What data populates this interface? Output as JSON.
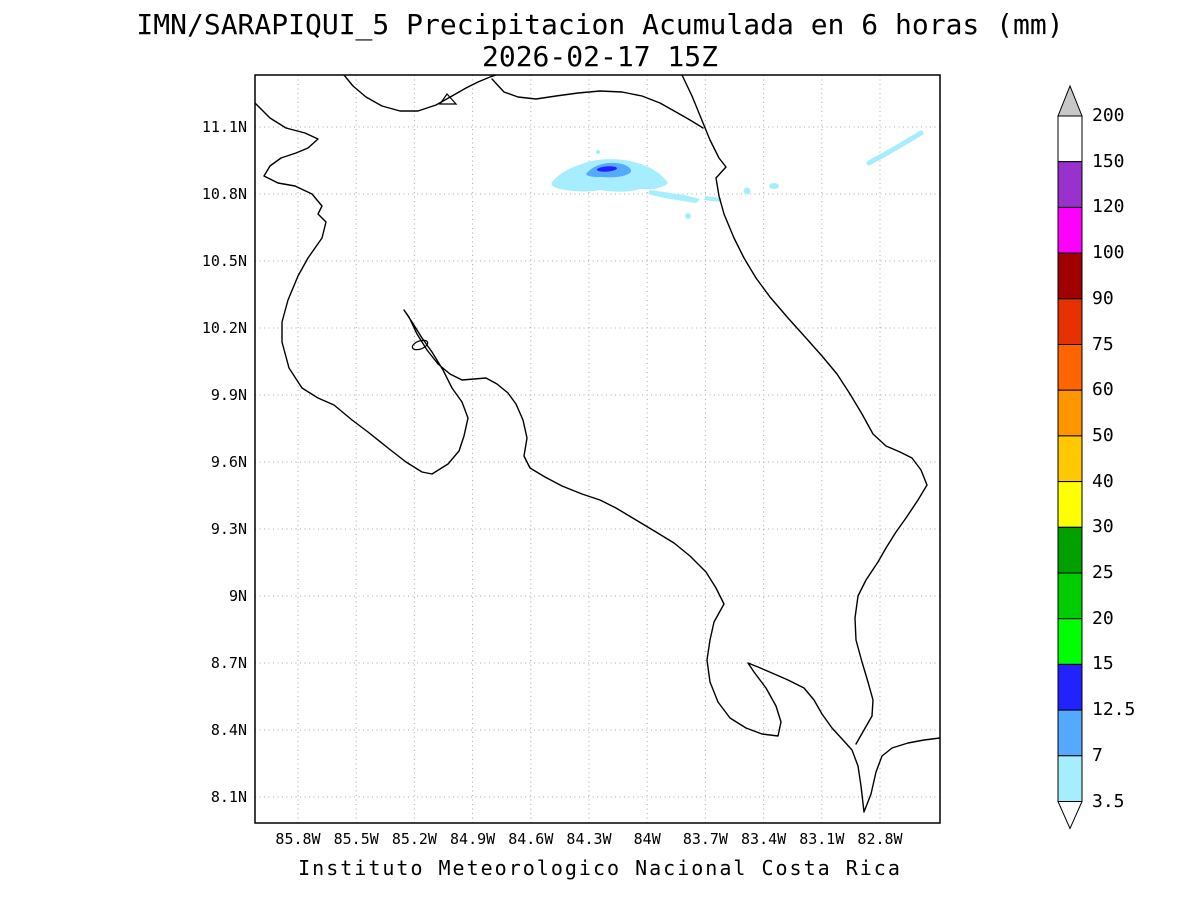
{
  "title": {
    "line1": "IMN/SARAPIQUI_5 Precipitacion Acumulada en 6 horas (mm)",
    "line2": "2026-02-17 15Z"
  },
  "footer": "Instituto Meteorologico Nacional Costa Rica",
  "axes": {
    "lat_ticks": [
      "11.1N",
      "10.8N",
      "10.5N",
      "10.2N",
      "9.9N",
      "9.6N",
      "9.3N",
      "9N",
      "8.7N",
      "8.4N",
      "8.1N"
    ],
    "lon_ticks": [
      "85.8W",
      "85.5W",
      "85.2W",
      "84.9W",
      "84.6W",
      "84.3W",
      "84W",
      "83.7W",
      "83.4W",
      "83.1W",
      "82.8W"
    ]
  },
  "colorbar": {
    "boundary_labels_top_to_bottom": [
      "200",
      "150",
      "120",
      "100",
      "90",
      "75",
      "60",
      "50",
      "40",
      "30",
      "25",
      "20",
      "15",
      "12.5",
      "7",
      "3.5"
    ],
    "segment_colors_top_to_bottom": [
      "#FFFFFF",
      "#9932CC",
      "#FF00FF",
      "#A00000",
      "#E63200",
      "#FF6400",
      "#FF9600",
      "#FFC800",
      "#FFFF00",
      "#00A000",
      "#00CD00",
      "#00FF00",
      "#2222FF",
      "#55AAFF",
      "#A6EEFF"
    ],
    "over_arrow_color": "#C8C8C8",
    "under_arrow_color": "#FFFFFF"
  },
  "chart_data": {
    "type": "heatmap",
    "subtype": "filled-contour precipitation map over coastline basemap",
    "title": "IMN/SARAPIQUI_5 Precipitacion Acumulada en 6 horas (mm)",
    "valid_time": "2026-02-17 15Z",
    "units": "mm",
    "region": "Costa Rica",
    "source_caption": "Instituto Meteorologico Nacional Costa Rica",
    "lon_ticks_deg_west": [
      85.8,
      85.5,
      85.2,
      84.9,
      84.6,
      84.3,
      84.0,
      83.7,
      83.4,
      83.1,
      82.8
    ],
    "lat_ticks_deg_north": [
      11.1,
      10.8,
      10.5,
      10.2,
      9.9,
      9.6,
      9.3,
      9.0,
      8.7,
      8.4,
      8.1
    ],
    "grid": true,
    "legend_position": "right",
    "contour_levels_mm": [
      3.5,
      7,
      12.5,
      15,
      20,
      25,
      30,
      40,
      50,
      60,
      75,
      90,
      100,
      120,
      150,
      200
    ],
    "palette_low_to_high": [
      "#A6EEFF",
      "#55AAFF",
      "#2222FF",
      "#00FF00",
      "#00CD00",
      "#00A000",
      "#FFFF00",
      "#FFC800",
      "#FF9600",
      "#FF6400",
      "#E63200",
      "#A00000",
      "#FF00FF",
      "#9932CC",
      "#FFFFFF"
    ],
    "over_color": "#C8C8C8",
    "precip_features": [
      {
        "shape": "band",
        "center_lon": -84.35,
        "center_lat": 10.87,
        "approx_length_deg": 0.6,
        "value_mm": "3.5-15",
        "note": "E-W elongated band near northern Costa Rica with small core of 7-15 mm"
      },
      {
        "shape": "streaks",
        "center_lon": -83.9,
        "center_lat": 10.78,
        "value_mm": "3.5-7",
        "note": "thin trailing streaks east of main band"
      },
      {
        "shape": "spots",
        "center_lon": -83.4,
        "center_lat": 10.83,
        "value_mm": "3.5-7",
        "note": "isolated small spots"
      },
      {
        "shape": "streak",
        "center_lon": -82.78,
        "center_lat": 11.05,
        "value_mm": "3.5-7",
        "note": "diagonal streak near NE corner of domain"
      }
    ]
  }
}
